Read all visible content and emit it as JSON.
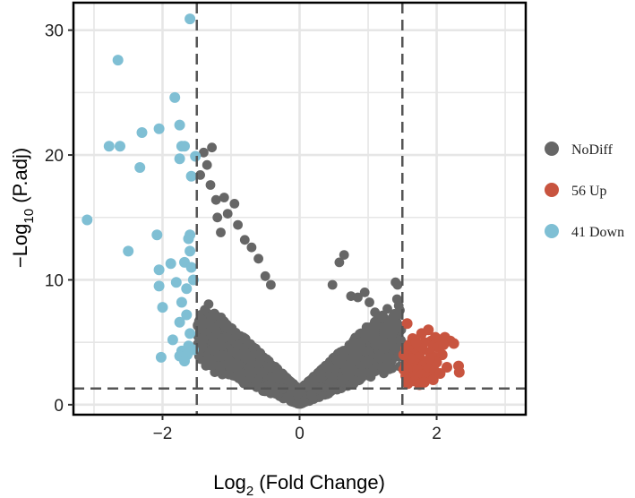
{
  "chart_data": {
    "type": "scatter",
    "title": "",
    "xlabel": {
      "prefix": "Log",
      "subscript": "2",
      "suffix": " (Fold Change)"
    },
    "ylabel": {
      "prefix": "−Log",
      "subscript": "10",
      "suffix": " (P.adj)"
    },
    "xlim": [
      -3.3,
      3.3
    ],
    "ylim": [
      -0.8,
      32.2
    ],
    "x_ticks": [
      -2,
      0,
      2
    ],
    "x_tick_labels": [
      "−2",
      "0",
      "2"
    ],
    "y_ticks": [
      0,
      10,
      20,
      30
    ],
    "y_tick_labels": [
      "0",
      "10",
      "20",
      "30"
    ],
    "grid": true,
    "thresholds": {
      "log2fc": [
        -1.5,
        1.5
      ],
      "neg_log10_padj": 1.3
    },
    "legend": {
      "position": "right",
      "entries": [
        {
          "key": "nodiff",
          "label": "NoDiff",
          "color": "#666666"
        },
        {
          "key": "up",
          "label": "56 Up",
          "color": "#c8543f"
        },
        {
          "key": "down",
          "label": "41 Down",
          "color": "#7fbfd4"
        }
      ]
    },
    "series": [
      {
        "key": "down",
        "color": "#7fbfd4",
        "points": [
          [
            -1.6,
            30.9
          ],
          [
            -2.65,
            27.6
          ],
          [
            -1.82,
            24.6
          ],
          [
            -1.75,
            22.4
          ],
          [
            -2.05,
            22.1
          ],
          [
            -2.3,
            21.8
          ],
          [
            -2.78,
            20.7
          ],
          [
            -2.62,
            20.7
          ],
          [
            -1.72,
            20.7
          ],
          [
            -1.68,
            20.7
          ],
          [
            -1.52,
            19.9
          ],
          [
            -1.75,
            19.7
          ],
          [
            -2.33,
            19.0
          ],
          [
            -1.58,
            18.3
          ],
          [
            -3.1,
            14.8
          ],
          [
            -1.6,
            13.6
          ],
          [
            -2.08,
            13.6
          ],
          [
            -1.62,
            13.3
          ],
          [
            -2.5,
            12.3
          ],
          [
            -1.6,
            12.3
          ],
          [
            -1.68,
            11.4
          ],
          [
            -1.88,
            11.3
          ],
          [
            -1.58,
            11.0
          ],
          [
            -2.05,
            10.8
          ],
          [
            -1.55,
            10.0
          ],
          [
            -1.8,
            9.8
          ],
          [
            -2.05,
            9.5
          ],
          [
            -1.65,
            9.3
          ],
          [
            -1.72,
            8.2
          ],
          [
            -2.0,
            7.8
          ],
          [
            -1.65,
            7.2
          ],
          [
            -1.75,
            6.6
          ],
          [
            -1.6,
            5.7
          ],
          [
            -1.85,
            5.2
          ],
          [
            -1.62,
            4.7
          ],
          [
            -1.55,
            4.4
          ],
          [
            -1.72,
            4.3
          ],
          [
            -1.64,
            4.0
          ],
          [
            -1.75,
            3.9
          ],
          [
            -2.02,
            3.8
          ],
          [
            -1.68,
            3.5
          ]
        ]
      },
      {
        "key": "up",
        "color": "#c8543f",
        "points": [
          [
            1.57,
            6.5
          ],
          [
            1.65,
            5.3
          ],
          [
            1.78,
            5.7
          ],
          [
            1.88,
            6.0
          ],
          [
            1.92,
            5.1
          ],
          [
            1.98,
            5.4
          ],
          [
            2.05,
            5.2
          ],
          [
            2.12,
            5.4
          ],
          [
            2.2,
            5.1
          ],
          [
            2.25,
            4.9
          ],
          [
            1.6,
            4.8
          ],
          [
            1.72,
            4.9
          ],
          [
            1.82,
            5.0
          ],
          [
            1.95,
            4.7
          ],
          [
            2.02,
            4.6
          ],
          [
            2.1,
            4.8
          ],
          [
            1.55,
            4.5
          ],
          [
            1.63,
            4.3
          ],
          [
            1.7,
            4.1
          ],
          [
            1.8,
            4.4
          ],
          [
            1.9,
            4.2
          ],
          [
            1.97,
            3.8
          ],
          [
            2.08,
            4.0
          ],
          [
            1.58,
            3.9
          ],
          [
            1.66,
            3.6
          ],
          [
            1.75,
            3.8
          ],
          [
            1.85,
            3.5
          ],
          [
            1.93,
            3.3
          ],
          [
            2.0,
            3.4
          ],
          [
            1.55,
            3.2
          ],
          [
            1.62,
            3.0
          ],
          [
            1.7,
            3.3
          ],
          [
            1.8,
            3.1
          ],
          [
            1.88,
            2.9
          ],
          [
            1.97,
            2.7
          ],
          [
            2.15,
            3.0
          ],
          [
            2.32,
            3.1
          ],
          [
            2.33,
            2.6
          ],
          [
            1.6,
            2.5
          ],
          [
            1.72,
            2.8
          ],
          [
            1.55,
            2.3
          ],
          [
            1.65,
            2.1
          ],
          [
            1.78,
            2.4
          ],
          [
            1.86,
            2.2
          ],
          [
            1.95,
            2.0
          ],
          [
            1.58,
            1.7
          ],
          [
            1.68,
            1.9
          ],
          [
            1.75,
            1.6
          ],
          [
            1.82,
            1.8
          ],
          [
            1.52,
            2.8
          ],
          [
            1.62,
            3.7
          ],
          [
            1.78,
            4.6
          ],
          [
            1.7,
            5.0
          ],
          [
            1.52,
            4.0
          ],
          [
            2.05,
            2.5
          ],
          [
            1.9,
            3.7
          ]
        ]
      }
    ],
    "nodiff_sample": {
      "key": "nodiff",
      "color": "#666666",
      "count": 5600,
      "outliers": [
        [
          -1.4,
          20.2
        ],
        [
          -1.28,
          20.6
        ],
        [
          -1.35,
          19.2
        ],
        [
          -1.45,
          18.4
        ],
        [
          -1.3,
          17.6
        ],
        [
          -1.22,
          16.4
        ],
        [
          -1.1,
          16.6
        ],
        [
          -0.95,
          16.1
        ],
        [
          -1.05,
          15.3
        ],
        [
          -1.2,
          15.0
        ],
        [
          -0.9,
          14.4
        ],
        [
          -0.8,
          13.2
        ],
        [
          -0.7,
          12.6
        ],
        [
          -0.6,
          11.7
        ],
        [
          -1.15,
          13.8
        ],
        [
          0.58,
          11.4
        ],
        [
          0.65,
          12.0
        ],
        [
          0.48,
          9.6
        ],
        [
          0.75,
          8.7
        ],
        [
          0.85,
          8.6
        ],
        [
          0.95,
          9.0
        ],
        [
          1.02,
          8.2
        ],
        [
          1.4,
          9.8
        ],
        [
          1.43,
          9.6
        ],
        [
          1.47,
          6.3
        ],
        [
          1.35,
          6.2
        ],
        [
          1.2,
          7.1
        ],
        [
          1.1,
          7.4
        ],
        [
          -0.5,
          10.3
        ],
        [
          -0.42,
          9.6
        ]
      ]
    }
  }
}
